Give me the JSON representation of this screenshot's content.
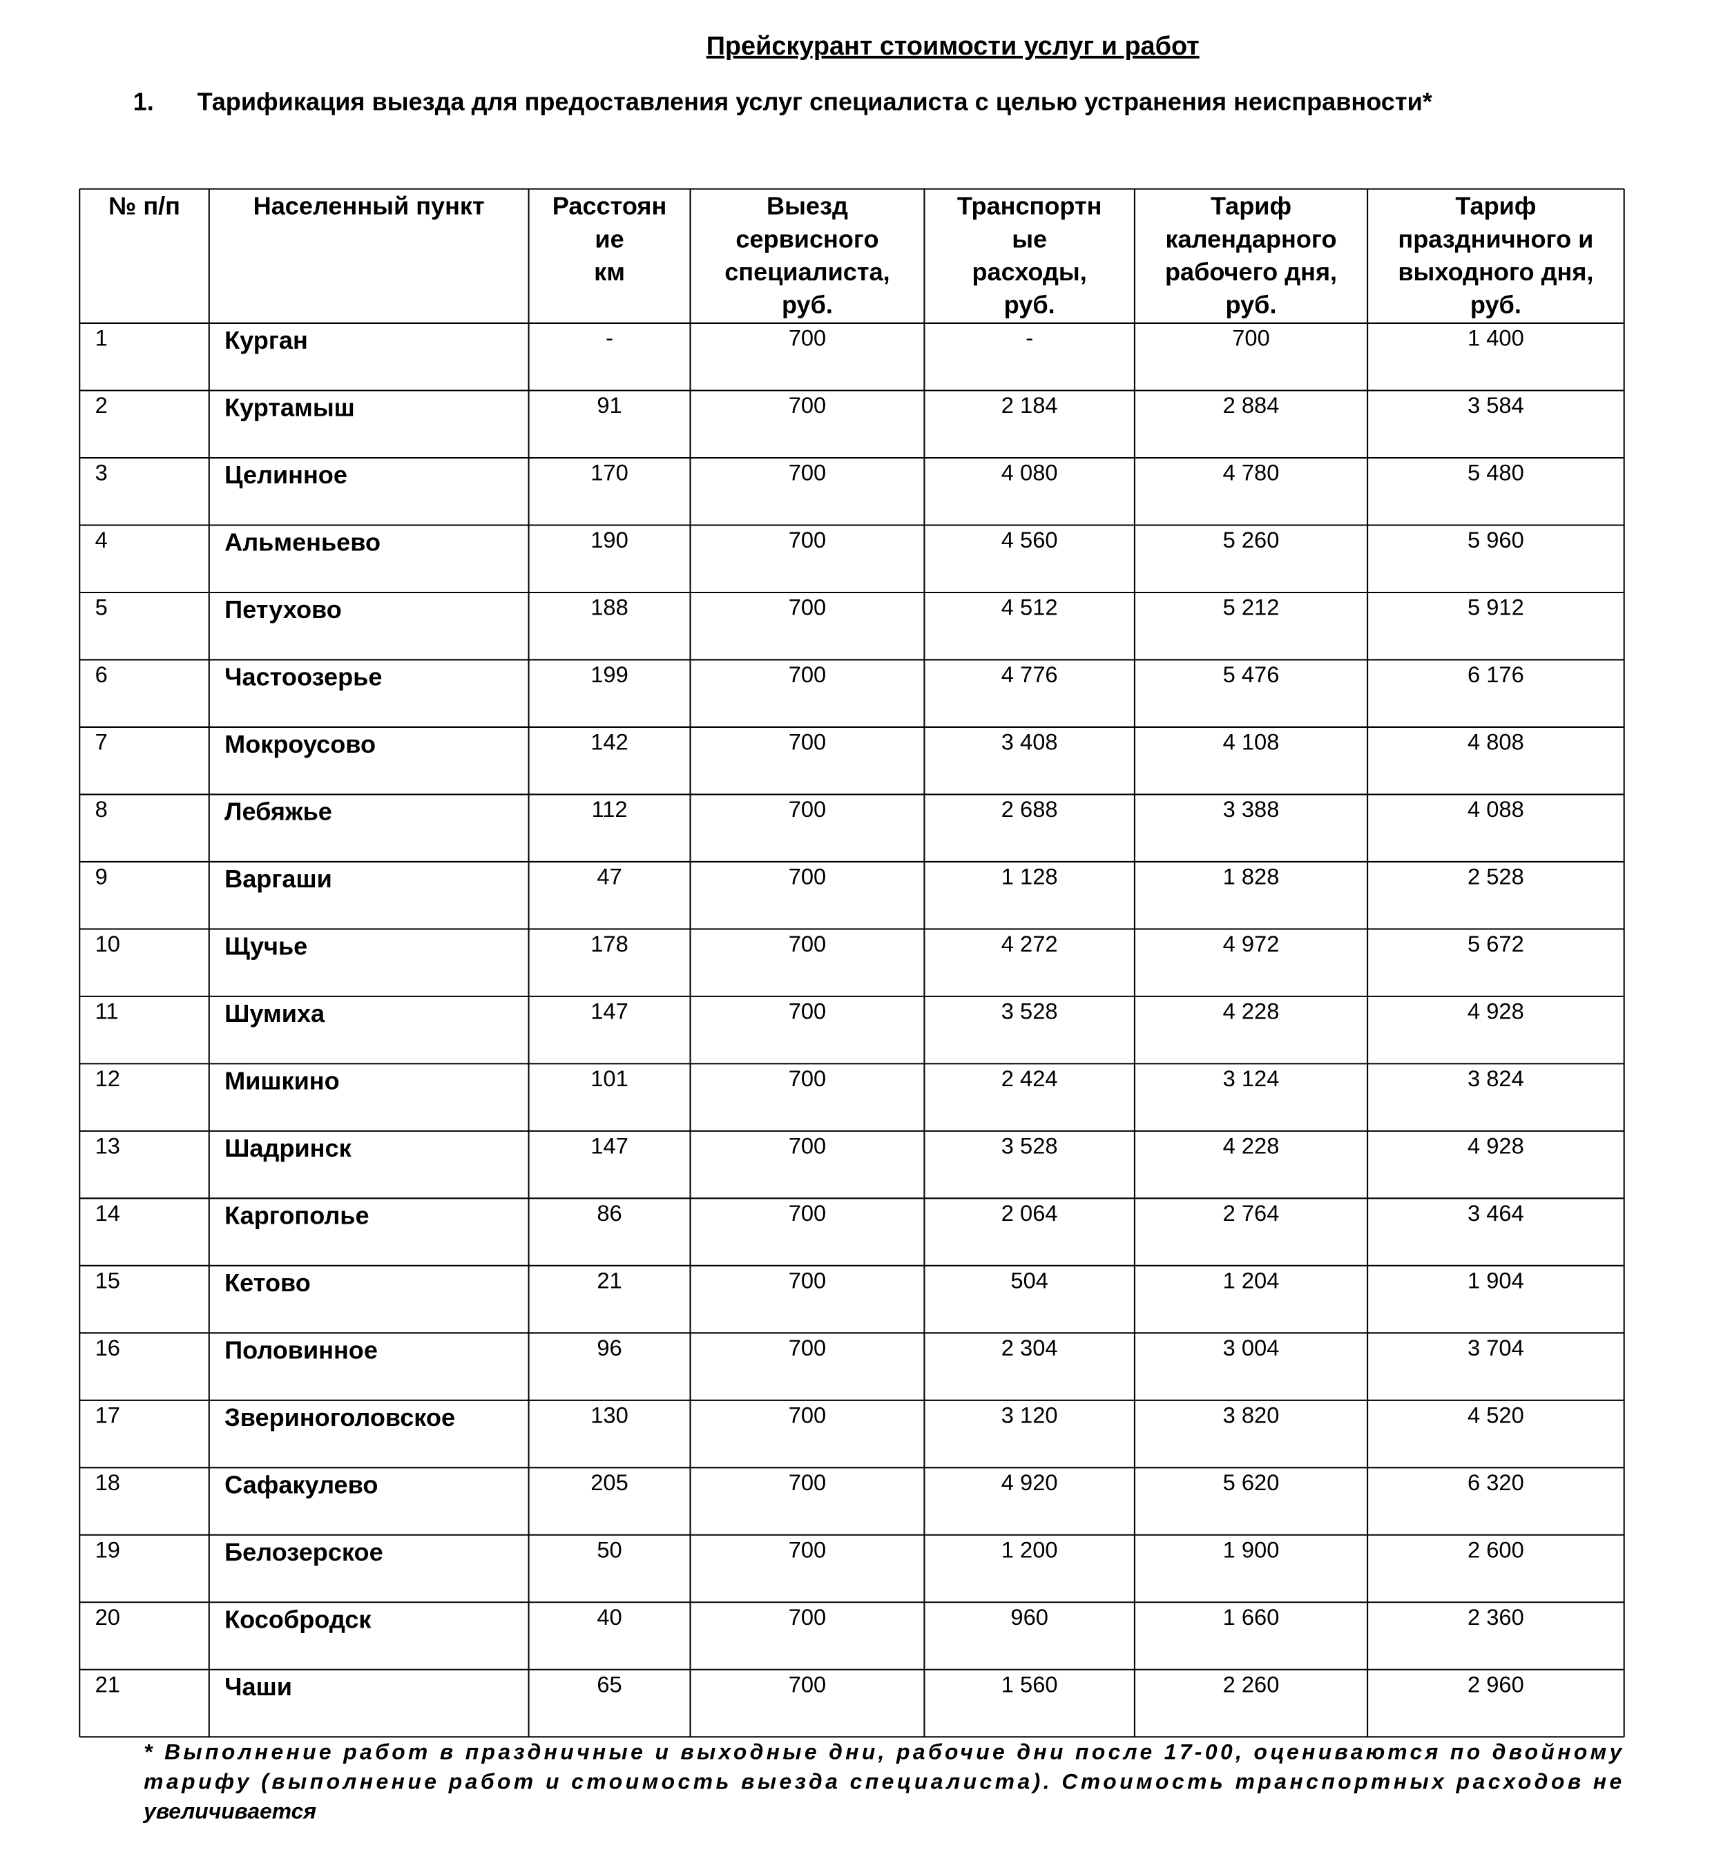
{
  "title": "Прейскурант стоимости услуг и работ",
  "section": {
    "number": "1.",
    "heading": "Тарификация выезда для предоставления услуг специалиста с целью устранения неисправности*"
  },
  "table": {
    "header": [
      [
        "№ п/п"
      ],
      [
        "Населенный пункт"
      ],
      [
        "Расстоян",
        "ие",
        "км"
      ],
      [
        "Выезд",
        "сервисного",
        "специалиста,",
        "руб."
      ],
      [
        "Транспортн",
        "ые",
        "расходы,",
        "руб."
      ],
      [
        "Тариф",
        "календарного",
        "рабочего дня,",
        "руб."
      ],
      [
        "Тариф",
        "праздничного и",
        "выходного дня,",
        "руб."
      ]
    ],
    "rows": [
      [
        "1",
        "Курган",
        "-",
        "700",
        "-",
        "700",
        "1 400"
      ],
      [
        "2",
        "Куртамыш",
        "91",
        "700",
        "2 184",
        "2 884",
        "3 584"
      ],
      [
        "3",
        "Целинное",
        "170",
        "700",
        "4 080",
        "4 780",
        "5 480"
      ],
      [
        "4",
        "Альменьево",
        "190",
        "700",
        "4 560",
        "5 260",
        "5 960"
      ],
      [
        "5",
        "Петухово",
        "188",
        "700",
        "4 512",
        "5 212",
        "5 912"
      ],
      [
        "6",
        "Частоозерье",
        "199",
        "700",
        "4 776",
        "5 476",
        "6 176"
      ],
      [
        "7",
        "Мокроусово",
        "142",
        "700",
        "3 408",
        "4 108",
        "4 808"
      ],
      [
        "8",
        "Лебяжье",
        "112",
        "700",
        "2 688",
        "3 388",
        "4 088"
      ],
      [
        "9",
        "Варгаши",
        "47",
        "700",
        "1 128",
        "1 828",
        "2 528"
      ],
      [
        "10",
        "Щучье",
        "178",
        "700",
        "4 272",
        "4 972",
        "5 672"
      ],
      [
        "11",
        "Шумиха",
        "147",
        "700",
        "3 528",
        "4 228",
        "4 928"
      ],
      [
        "12",
        "Мишкино",
        "101",
        "700",
        "2 424",
        "3 124",
        "3 824"
      ],
      [
        "13",
        "Шадринск",
        "147",
        "700",
        "3 528",
        "4 228",
        "4 928"
      ],
      [
        "14",
        "Каргополье",
        "86",
        "700",
        "2 064",
        "2 764",
        "3 464"
      ],
      [
        "15",
        "Кетово",
        "21",
        "700",
        "504",
        "1 204",
        "1 904"
      ],
      [
        "16",
        "Половинное",
        "96",
        "700",
        "2 304",
        "3 004",
        "3 704"
      ],
      [
        "17",
        "Звериноголовское",
        "130",
        "700",
        "3 120",
        "3 820",
        "4 520"
      ],
      [
        "18",
        "Сафакулево",
        "205",
        "700",
        "4 920",
        "5 620",
        "6 320"
      ],
      [
        "19",
        "Белозерское",
        "50",
        "700",
        "1 200",
        "1 900",
        "2 600"
      ],
      [
        "20",
        "Кособродск",
        "40",
        "700",
        "960",
        "1 660",
        "2 360"
      ],
      [
        "21",
        "Чаши",
        "65",
        "700",
        "1 560",
        "2 260",
        "2 960"
      ]
    ]
  },
  "footnote": [
    "* Выполнение работ в праздничные и выходные дни, рабочие дни после 17-00, оцениваются по двойному",
    "тарифу (выполнение  работ и стоимость выезда специалиста). Стоимость транспортных расходов не",
    "увеличивается"
  ]
}
